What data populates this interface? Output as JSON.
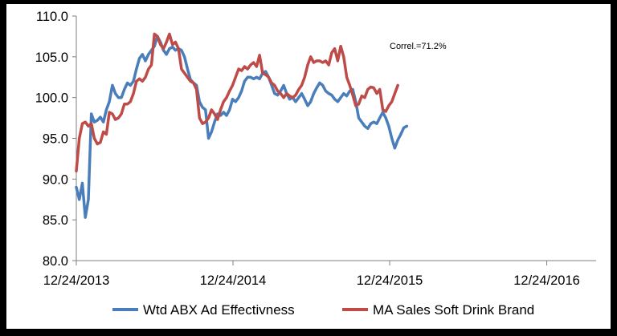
{
  "chart_data": {
    "type": "line",
    "title": "",
    "xlabel": "",
    "ylabel": "",
    "xlim": [
      "2013-12-24",
      "2017-04-18"
    ],
    "ylim": [
      80,
      110
    ],
    "grid": false,
    "legend_position": "bottom",
    "x_ticks": [
      "12/24/2013",
      "12/24/2014",
      "12/24/2015",
      "12/24/2016"
    ],
    "y_ticks": [
      "80.0",
      "85.0",
      "90.0",
      "95.0",
      "100.0",
      "105.0",
      "110.0"
    ],
    "annotation": "Correl.=71.2%",
    "series": [
      {
        "name": "Wtd ABX Ad Effectivness",
        "color": "#4a7ebb",
        "points": [
          [
            "2013-12-24",
            89.0
          ],
          [
            "2013-12-31",
            87.5
          ],
          [
            "2014-01-07",
            89.5
          ],
          [
            "2014-01-14",
            85.3
          ],
          [
            "2014-01-21",
            87.5
          ],
          [
            "2014-01-28",
            98.0
          ],
          [
            "2014-02-04",
            97.0
          ],
          [
            "2014-02-11",
            97.2
          ],
          [
            "2014-02-18",
            97.6
          ],
          [
            "2014-02-25",
            97.0
          ],
          [
            "2014-03-04",
            98.5
          ],
          [
            "2014-03-11",
            99.5
          ],
          [
            "2014-03-18",
            101.5
          ],
          [
            "2014-03-25",
            100.5
          ],
          [
            "2014-04-01",
            100.0
          ],
          [
            "2014-04-08",
            100.0
          ],
          [
            "2014-04-15",
            101.0
          ],
          [
            "2014-04-22",
            101.8
          ],
          [
            "2014-04-29",
            101.5
          ],
          [
            "2014-05-06",
            102.0
          ],
          [
            "2014-05-13",
            103.5
          ],
          [
            "2014-05-20",
            104.8
          ],
          [
            "2014-05-27",
            105.3
          ],
          [
            "2014-06-03",
            104.5
          ],
          [
            "2014-06-10",
            105.3
          ],
          [
            "2014-06-17",
            105.8
          ],
          [
            "2014-06-24",
            106.3
          ],
          [
            "2014-07-01",
            107.5
          ],
          [
            "2014-07-08",
            106.8
          ],
          [
            "2014-07-15",
            105.8
          ],
          [
            "2014-07-22",
            105.3
          ],
          [
            "2014-07-29",
            106.0
          ],
          [
            "2014-08-05",
            106.2
          ],
          [
            "2014-08-12",
            105.8
          ],
          [
            "2014-08-19",
            106.0
          ],
          [
            "2014-08-26",
            105.8
          ],
          [
            "2014-09-02",
            105.0
          ],
          [
            "2014-09-09",
            103.5
          ],
          [
            "2014-09-16",
            102.2
          ],
          [
            "2014-09-23",
            101.8
          ],
          [
            "2014-09-30",
            101.5
          ],
          [
            "2014-10-07",
            99.5
          ],
          [
            "2014-10-14",
            98.8
          ],
          [
            "2014-10-21",
            98.5
          ],
          [
            "2014-10-28",
            95.0
          ],
          [
            "2014-11-04",
            95.8
          ],
          [
            "2014-11-11",
            97.0
          ],
          [
            "2014-11-18",
            98.0
          ],
          [
            "2014-11-25",
            97.8
          ],
          [
            "2014-12-02",
            98.2
          ],
          [
            "2014-12-09",
            97.8
          ],
          [
            "2014-12-16",
            98.5
          ],
          [
            "2014-12-23",
            99.8
          ],
          [
            "2014-12-30",
            99.5
          ],
          [
            "2015-01-06",
            100.0
          ],
          [
            "2015-01-13",
            100.8
          ],
          [
            "2015-01-20",
            102.0
          ],
          [
            "2015-01-27",
            102.5
          ],
          [
            "2015-02-03",
            102.5
          ],
          [
            "2015-02-10",
            102.3
          ],
          [
            "2015-02-17",
            102.5
          ],
          [
            "2015-02-24",
            102.3
          ],
          [
            "2015-03-03",
            103.0
          ],
          [
            "2015-03-10",
            103.2
          ],
          [
            "2015-03-17",
            102.5
          ],
          [
            "2015-03-24",
            101.5
          ],
          [
            "2015-03-31",
            100.5
          ],
          [
            "2015-04-07",
            100.3
          ],
          [
            "2015-04-14",
            100.8
          ],
          [
            "2015-04-21",
            101.5
          ],
          [
            "2015-04-28",
            100.5
          ],
          [
            "2015-05-05",
            99.8
          ],
          [
            "2015-05-12",
            100.0
          ],
          [
            "2015-05-19",
            99.5
          ],
          [
            "2015-05-26",
            100.0
          ],
          [
            "2015-06-02",
            100.5
          ],
          [
            "2015-06-09",
            99.8
          ],
          [
            "2015-06-16",
            99.0
          ],
          [
            "2015-06-23",
            99.5
          ],
          [
            "2015-06-30",
            100.5
          ],
          [
            "2015-07-07",
            101.2
          ],
          [
            "2015-07-14",
            101.8
          ],
          [
            "2015-07-21",
            101.5
          ],
          [
            "2015-07-28",
            100.8
          ],
          [
            "2015-08-04",
            100.5
          ],
          [
            "2015-08-11",
            100.3
          ],
          [
            "2015-08-18",
            99.8
          ],
          [
            "2015-08-25",
            99.5
          ],
          [
            "2015-09-01",
            100.0
          ],
          [
            "2015-09-08",
            100.5
          ],
          [
            "2015-09-15",
            100.2
          ],
          [
            "2015-09-22",
            100.8
          ],
          [
            "2015-09-29",
            101.0
          ],
          [
            "2015-10-06",
            99.5
          ],
          [
            "2015-10-13",
            97.5
          ],
          [
            "2015-10-20",
            97.0
          ],
          [
            "2015-10-27",
            96.5
          ],
          [
            "2015-11-03",
            96.2
          ],
          [
            "2015-11-10",
            96.8
          ],
          [
            "2015-11-17",
            97.0
          ],
          [
            "2015-11-24",
            96.8
          ],
          [
            "2015-12-01",
            97.5
          ],
          [
            "2015-12-08",
            98.2
          ],
          [
            "2015-12-15",
            97.5
          ],
          [
            "2015-12-22",
            96.5
          ],
          [
            "2015-12-29",
            95.0
          ],
          [
            "2016-01-05",
            93.8
          ],
          [
            "2016-01-12",
            94.8
          ],
          [
            "2016-01-19",
            95.5
          ],
          [
            "2016-01-26",
            96.3
          ],
          [
            "2016-02-02",
            96.5
          ]
        ]
      },
      {
        "name": "MA Sales Soft Drink Brand",
        "color": "#be4b48",
        "points": [
          [
            "2013-12-24",
            91.0
          ],
          [
            "2013-12-31",
            95.0
          ],
          [
            "2014-01-07",
            96.8
          ],
          [
            "2014-01-14",
            97.0
          ],
          [
            "2014-01-21",
            96.5
          ],
          [
            "2014-01-28",
            96.8
          ],
          [
            "2014-02-04",
            95.0
          ],
          [
            "2014-02-11",
            94.3
          ],
          [
            "2014-02-18",
            94.5
          ],
          [
            "2014-02-25",
            95.8
          ],
          [
            "2014-03-04",
            95.5
          ],
          [
            "2014-03-11",
            98.2
          ],
          [
            "2014-03-18",
            98.0
          ],
          [
            "2014-03-25",
            97.3
          ],
          [
            "2014-04-01",
            97.5
          ],
          [
            "2014-04-08",
            98.0
          ],
          [
            "2014-04-15",
            99.2
          ],
          [
            "2014-04-22",
            99.2
          ],
          [
            "2014-04-29",
            99.5
          ],
          [
            "2014-05-06",
            100.5
          ],
          [
            "2014-05-13",
            102.0
          ],
          [
            "2014-05-20",
            102.3
          ],
          [
            "2014-05-27",
            102.0
          ],
          [
            "2014-06-03",
            102.5
          ],
          [
            "2014-06-10",
            103.5
          ],
          [
            "2014-06-17",
            104.0
          ],
          [
            "2014-06-24",
            107.8
          ],
          [
            "2014-07-01",
            107.5
          ],
          [
            "2014-07-08",
            106.5
          ],
          [
            "2014-07-15",
            106.0
          ],
          [
            "2014-07-22",
            106.8
          ],
          [
            "2014-07-29",
            107.8
          ],
          [
            "2014-08-05",
            106.5
          ],
          [
            "2014-08-12",
            106.8
          ],
          [
            "2014-08-19",
            106.0
          ],
          [
            "2014-08-26",
            103.5
          ],
          [
            "2014-09-02",
            103.0
          ],
          [
            "2014-09-09",
            102.5
          ],
          [
            "2014-09-16",
            102.0
          ],
          [
            "2014-09-23",
            101.8
          ],
          [
            "2014-09-30",
            101.0
          ],
          [
            "2014-10-07",
            97.5
          ],
          [
            "2014-10-14",
            96.8
          ],
          [
            "2014-10-21",
            97.0
          ],
          [
            "2014-10-28",
            97.5
          ],
          [
            "2014-11-04",
            98.5
          ],
          [
            "2014-11-11",
            98.0
          ],
          [
            "2014-11-18",
            97.3
          ],
          [
            "2014-11-25",
            98.5
          ],
          [
            "2014-12-02",
            99.5
          ],
          [
            "2014-12-09",
            100.0
          ],
          [
            "2014-12-16",
            100.8
          ],
          [
            "2014-12-23",
            101.5
          ],
          [
            "2014-12-30",
            102.5
          ],
          [
            "2015-01-06",
            103.5
          ],
          [
            "2015-01-13",
            103.3
          ],
          [
            "2015-01-20",
            103.8
          ],
          [
            "2015-01-27",
            103.5
          ],
          [
            "2015-02-03",
            104.0
          ],
          [
            "2015-02-10",
            104.3
          ],
          [
            "2015-02-17",
            103.8
          ],
          [
            "2015-02-24",
            105.2
          ],
          [
            "2015-03-03",
            103.0
          ],
          [
            "2015-03-10",
            102.8
          ],
          [
            "2015-03-17",
            102.5
          ],
          [
            "2015-03-24",
            101.8
          ],
          [
            "2015-03-31",
            101.5
          ],
          [
            "2015-04-07",
            100.8
          ],
          [
            "2015-04-14",
            100.5
          ],
          [
            "2015-04-21",
            100.0
          ],
          [
            "2015-04-28",
            100.5
          ],
          [
            "2015-05-05",
            100.2
          ],
          [
            "2015-05-12",
            100.0
          ],
          [
            "2015-05-19",
            100.3
          ],
          [
            "2015-05-26",
            101.0
          ],
          [
            "2015-06-02",
            101.5
          ],
          [
            "2015-06-09",
            102.5
          ],
          [
            "2015-06-16",
            104.0
          ],
          [
            "2015-06-23",
            105.0
          ],
          [
            "2015-06-30",
            104.3
          ],
          [
            "2015-07-07",
            104.5
          ],
          [
            "2015-07-14",
            104.5
          ],
          [
            "2015-07-21",
            104.3
          ],
          [
            "2015-07-28",
            104.5
          ],
          [
            "2015-08-04",
            104.0
          ],
          [
            "2015-08-11",
            105.5
          ],
          [
            "2015-08-18",
            106.0
          ],
          [
            "2015-08-25",
            104.5
          ],
          [
            "2015-09-01",
            106.3
          ],
          [
            "2015-09-08",
            105.0
          ],
          [
            "2015-09-15",
            102.5
          ],
          [
            "2015-09-22",
            101.5
          ],
          [
            "2015-09-29",
            100.3
          ],
          [
            "2015-10-06",
            99.0
          ],
          [
            "2015-10-13",
            99.2
          ],
          [
            "2015-10-20",
            100.2
          ],
          [
            "2015-10-27",
            100.0
          ],
          [
            "2015-11-03",
            101.0
          ],
          [
            "2015-11-10",
            101.3
          ],
          [
            "2015-11-17",
            101.2
          ],
          [
            "2015-11-24",
            100.5
          ],
          [
            "2015-12-01",
            101.0
          ],
          [
            "2015-12-08",
            98.5
          ],
          [
            "2015-12-15",
            98.3
          ],
          [
            "2015-12-22",
            99.0
          ],
          [
            "2015-12-29",
            99.5
          ],
          [
            "2016-01-05",
            100.5
          ],
          [
            "2016-01-12",
            101.5
          ]
        ]
      }
    ]
  }
}
